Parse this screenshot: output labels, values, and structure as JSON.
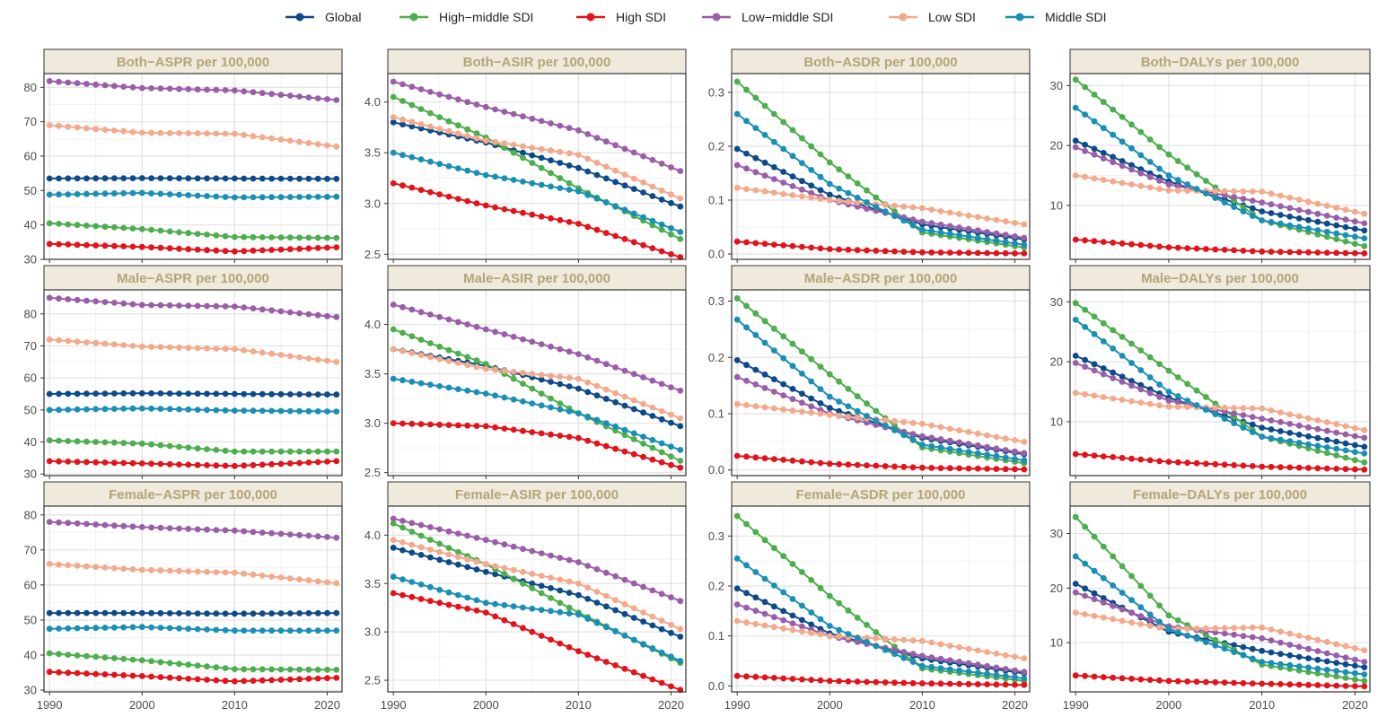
{
  "legend": [
    {
      "name": "Global",
      "color": "#0c4a8a"
    },
    {
      "name": "High−middle SDI",
      "color": "#4cae4c"
    },
    {
      "name": "High SDI",
      "color": "#e1141b"
    },
    {
      "name": "Low−middle SDI",
      "color": "#9a5ea8"
    },
    {
      "name": "Low SDI",
      "color": "#f3a98c"
    },
    {
      "name": "Middle SDI",
      "color": "#1a8fb5"
    }
  ],
  "chart_data": [
    {
      "type": "line",
      "title": "Both−ASPR per 100,000",
      "x": [
        1990,
        2000,
        2010,
        2021
      ],
      "ylim": [
        30,
        84
      ],
      "yticks": [
        30,
        40,
        50,
        60,
        70,
        80
      ],
      "ytick_labels": [
        "30",
        "40",
        "50",
        "60",
        "70",
        "80"
      ],
      "xticks": [
        1990,
        2000,
        2010,
        2020
      ],
      "xtick_labels": [
        "1990",
        "2000",
        "2010",
        "2020"
      ],
      "series": [
        {
          "name": "Global",
          "values": [
            53.5,
            53.6,
            53.5,
            53.4
          ]
        },
        {
          "name": "High−middle SDI",
          "values": [
            40.5,
            38.8,
            36.5,
            36.2
          ]
        },
        {
          "name": "High SDI",
          "values": [
            34.5,
            33.6,
            32.3,
            33.5
          ]
        },
        {
          "name": "Low−middle SDI",
          "values": [
            81.8,
            79.8,
            79.1,
            76.3
          ]
        },
        {
          "name": "Low SDI",
          "values": [
            69.0,
            66.8,
            66.5,
            62.8
          ]
        },
        {
          "name": "Middle SDI",
          "values": [
            48.8,
            49.3,
            48.0,
            48.2
          ]
        }
      ]
    },
    {
      "type": "line",
      "title": "Both−ASIR per 100,000",
      "x": [
        1990,
        2000,
        2010,
        2021
      ],
      "ylim": [
        2.45,
        4.28
      ],
      "yticks": [
        2.5,
        3.0,
        3.5,
        4.0
      ],
      "ytick_labels": [
        "2.5",
        "3.0",
        "3.5",
        "4.0"
      ],
      "xticks": [
        1990,
        2000,
        2010,
        2020
      ],
      "xtick_labels": [
        "1990",
        "2000",
        "2010",
        "2020"
      ],
      "series": [
        {
          "name": "Global",
          "values": [
            3.8,
            3.6,
            3.35,
            2.97
          ]
        },
        {
          "name": "High−middle SDI",
          "values": [
            4.05,
            3.65,
            3.15,
            2.65
          ]
        },
        {
          "name": "High SDI",
          "values": [
            3.2,
            2.98,
            2.8,
            2.47
          ]
        },
        {
          "name": "Low−middle SDI",
          "values": [
            4.2,
            3.95,
            3.72,
            3.32
          ]
        },
        {
          "name": "Low SDI",
          "values": [
            3.85,
            3.62,
            3.48,
            3.05
          ]
        },
        {
          "name": "Middle SDI",
          "values": [
            3.5,
            3.28,
            3.12,
            2.72
          ]
        }
      ]
    },
    {
      "type": "line",
      "title": "Both−ASDR per 100,000",
      "x": [
        1990,
        2000,
        2010,
        2021
      ],
      "ylim": [
        -0.01,
        0.335
      ],
      "yticks": [
        0.0,
        0.1,
        0.2,
        0.3
      ],
      "ytick_labels": [
        "0.0",
        "0.1",
        "0.2",
        "0.3"
      ],
      "xticks": [
        1990,
        2000,
        2010,
        2020
      ],
      "xtick_labels": [
        "1990",
        "2000",
        "2010",
        "2020"
      ],
      "series": [
        {
          "name": "Global",
          "values": [
            0.195,
            0.11,
            0.055,
            0.027
          ]
        },
        {
          "name": "High−middle SDI",
          "values": [
            0.32,
            0.17,
            0.04,
            0.012
          ]
        },
        {
          "name": "High SDI",
          "values": [
            0.023,
            0.009,
            0.003,
            0.001
          ]
        },
        {
          "name": "Low−middle SDI",
          "values": [
            0.165,
            0.1,
            0.06,
            0.03
          ]
        },
        {
          "name": "Low SDI",
          "values": [
            0.123,
            0.1,
            0.085,
            0.055
          ]
        },
        {
          "name": "Middle SDI",
          "values": [
            0.26,
            0.13,
            0.045,
            0.017
          ]
        }
      ]
    },
    {
      "type": "line",
      "title": "Both−DALYs per 100,000",
      "x": [
        1990,
        2000,
        2010,
        2021
      ],
      "ylim": [
        1,
        32
      ],
      "yticks": [
        10,
        20,
        30
      ],
      "ytick_labels": [
        "10",
        "20",
        "30"
      ],
      "xticks": [
        1990,
        2000,
        2010,
        2020
      ],
      "xtick_labels": [
        "1990",
        "2000",
        "2010",
        "2020"
      ],
      "series": [
        {
          "name": "Global",
          "values": [
            20.8,
            14.0,
            9.0,
            5.8
          ]
        },
        {
          "name": "High−middle SDI",
          "values": [
            31.0,
            18.5,
            7.5,
            3.2
          ]
        },
        {
          "name": "High SDI",
          "values": [
            4.3,
            3.0,
            2.3,
            2.0
          ]
        },
        {
          "name": "Low−middle SDI",
          "values": [
            19.7,
            13.5,
            10.5,
            7.0
          ]
        },
        {
          "name": "Low SDI",
          "values": [
            15.0,
            12.5,
            12.3,
            8.6
          ]
        },
        {
          "name": "Middle SDI",
          "values": [
            26.3,
            15.0,
            7.5,
            4.5
          ]
        }
      ]
    },
    {
      "type": "line",
      "title": "Male−ASPR per 100,000",
      "x": [
        1990,
        2000,
        2010,
        2021
      ],
      "ylim": [
        29.5,
        87.5
      ],
      "yticks": [
        30,
        40,
        50,
        60,
        70,
        80
      ],
      "ytick_labels": [
        "30",
        "40",
        "50",
        "60",
        "70",
        "80"
      ],
      "xticks": [
        1990,
        2000,
        2010,
        2020
      ],
      "xtick_labels": [
        "1990",
        "2000",
        "2010",
        "2020"
      ],
      "series": [
        {
          "name": "Global",
          "values": [
            55.0,
            55.2,
            55.0,
            54.8
          ]
        },
        {
          "name": "High−middle SDI",
          "values": [
            40.5,
            39.5,
            37.0,
            37.0
          ]
        },
        {
          "name": "High SDI",
          "values": [
            34.0,
            33.3,
            32.5,
            34.0
          ]
        },
        {
          "name": "Low−middle SDI",
          "values": [
            85.0,
            82.8,
            82.3,
            79.0
          ]
        },
        {
          "name": "Low SDI",
          "values": [
            72.0,
            69.8,
            69.0,
            65.0
          ]
        },
        {
          "name": "Middle SDI",
          "values": [
            50.0,
            50.5,
            49.8,
            49.5
          ]
        }
      ]
    },
    {
      "type": "line",
      "title": "Male−ASIR per 100,000",
      "x": [
        1990,
        2000,
        2010,
        2021
      ],
      "ylim": [
        2.47,
        4.35
      ],
      "yticks": [
        2.5,
        3.0,
        3.5,
        4.0
      ],
      "ytick_labels": [
        "2.5",
        "3.0",
        "3.5",
        "4.0"
      ],
      "xticks": [
        1990,
        2000,
        2010,
        2020
      ],
      "xtick_labels": [
        "1990",
        "2000",
        "2010",
        "2020"
      ],
      "series": [
        {
          "name": "Global",
          "values": [
            3.75,
            3.58,
            3.35,
            2.97
          ]
        },
        {
          "name": "High−middle SDI",
          "values": [
            3.95,
            3.6,
            3.1,
            2.62
          ]
        },
        {
          "name": "High SDI",
          "values": [
            3.0,
            2.97,
            2.85,
            2.55
          ]
        },
        {
          "name": "Low−middle SDI",
          "values": [
            4.2,
            3.95,
            3.7,
            3.33
          ]
        },
        {
          "name": "Low SDI",
          "values": [
            3.75,
            3.55,
            3.45,
            3.05
          ]
        },
        {
          "name": "Middle SDI",
          "values": [
            3.45,
            3.3,
            3.1,
            2.73
          ]
        }
      ]
    },
    {
      "type": "line",
      "title": "Male−ASDR per 100,000",
      "x": [
        1990,
        2000,
        2010,
        2021
      ],
      "ylim": [
        -0.01,
        0.32
      ],
      "yticks": [
        0.0,
        0.1,
        0.2,
        0.3
      ],
      "ytick_labels": [
        "0.0",
        "0.1",
        "0.2",
        "0.3"
      ],
      "xticks": [
        1990,
        2000,
        2010,
        2020
      ],
      "xtick_labels": [
        "1990",
        "2000",
        "2010",
        "2020"
      ],
      "series": [
        {
          "name": "Global",
          "values": [
            0.195,
            0.11,
            0.057,
            0.028
          ]
        },
        {
          "name": "High−middle SDI",
          "values": [
            0.305,
            0.17,
            0.04,
            0.012
          ]
        },
        {
          "name": "High SDI",
          "values": [
            0.025,
            0.011,
            0.004,
            0.001
          ]
        },
        {
          "name": "Low−middle SDI",
          "values": [
            0.165,
            0.1,
            0.06,
            0.03
          ]
        },
        {
          "name": "Low SDI",
          "values": [
            0.117,
            0.098,
            0.082,
            0.05
          ]
        },
        {
          "name": "Middle SDI",
          "values": [
            0.267,
            0.13,
            0.045,
            0.017
          ]
        }
      ]
    },
    {
      "type": "line",
      "title": "Male−DALYs per 100,000",
      "x": [
        1990,
        2000,
        2010,
        2021
      ],
      "ylim": [
        1,
        32
      ],
      "yticks": [
        10,
        20,
        30
      ],
      "ytick_labels": [
        "10",
        "20",
        "30"
      ],
      "xticks": [
        1990,
        2000,
        2010,
        2020
      ],
      "xtick_labels": [
        "1990",
        "2000",
        "2010",
        "2020"
      ],
      "series": [
        {
          "name": "Global",
          "values": [
            21.0,
            14.0,
            9.0,
            5.8
          ]
        },
        {
          "name": "High−middle SDI",
          "values": [
            29.8,
            18.5,
            7.5,
            3.2
          ]
        },
        {
          "name": "High SDI",
          "values": [
            4.6,
            3.3,
            2.5,
            2.0
          ]
        },
        {
          "name": "Low−middle SDI",
          "values": [
            19.8,
            13.5,
            10.5,
            7.3
          ]
        },
        {
          "name": "Low SDI",
          "values": [
            14.8,
            12.5,
            12.2,
            8.6
          ]
        },
        {
          "name": "Middle SDI",
          "values": [
            27.0,
            15.0,
            7.5,
            4.7
          ]
        }
      ]
    },
    {
      "type": "line",
      "title": "Female−ASPR per 100,000",
      "x": [
        1990,
        2000,
        2010,
        2021
      ],
      "ylim": [
        29.5,
        82.5
      ],
      "yticks": [
        30,
        40,
        50,
        60,
        70,
        80
      ],
      "ytick_labels": [
        "30",
        "40",
        "50",
        "60",
        "70",
        "80"
      ],
      "xticks": [
        1990,
        2000,
        2010,
        2020
      ],
      "xtick_labels": [
        "1990",
        "2000",
        "2010",
        "2020"
      ],
      "series": [
        {
          "name": "Global",
          "values": [
            52.0,
            52.0,
            51.8,
            52.0
          ]
        },
        {
          "name": "High−middle SDI",
          "values": [
            40.5,
            38.5,
            36.0,
            35.8
          ]
        },
        {
          "name": "High SDI",
          "values": [
            35.2,
            34.0,
            32.5,
            33.5
          ]
        },
        {
          "name": "Low−middle SDI",
          "values": [
            78.0,
            76.5,
            75.5,
            73.5
          ]
        },
        {
          "name": "Low SDI",
          "values": [
            66.0,
            64.3,
            63.5,
            60.5
          ]
        },
        {
          "name": "Middle SDI",
          "values": [
            47.5,
            48.0,
            47.0,
            47.0
          ]
        }
      ]
    },
    {
      "type": "line",
      "title": "Female−ASIR per 100,000",
      "x": [
        1990,
        2000,
        2010,
        2021
      ],
      "ylim": [
        2.38,
        4.3
      ],
      "yticks": [
        2.5,
        3.0,
        3.5,
        4.0
      ],
      "ytick_labels": [
        "2.5",
        "3.0",
        "3.5",
        "4.0"
      ],
      "xticks": [
        1990,
        2000,
        2010,
        2020
      ],
      "xtick_labels": [
        "1990",
        "2000",
        "2010",
        "2020"
      ],
      "series": [
        {
          "name": "Global",
          "values": [
            3.87,
            3.62,
            3.38,
            2.95
          ]
        },
        {
          "name": "High−middle SDI",
          "values": [
            4.12,
            3.7,
            3.2,
            2.68
          ]
        },
        {
          "name": "High SDI",
          "values": [
            3.4,
            3.2,
            2.8,
            2.4
          ]
        },
        {
          "name": "Low−middle SDI",
          "values": [
            4.17,
            3.95,
            3.72,
            3.32
          ]
        },
        {
          "name": "Low SDI",
          "values": [
            3.95,
            3.7,
            3.5,
            3.03
          ]
        },
        {
          "name": "Middle SDI",
          "values": [
            3.57,
            3.3,
            3.18,
            2.7
          ]
        }
      ]
    },
    {
      "type": "line",
      "title": "Female−ASDR per 100,000",
      "x": [
        1990,
        2000,
        2010,
        2021
      ],
      "ylim": [
        -0.012,
        0.36
      ],
      "yticks": [
        0.0,
        0.1,
        0.2,
        0.3
      ],
      "ytick_labels": [
        "0.0",
        "0.1",
        "0.2",
        "0.3"
      ],
      "xticks": [
        1990,
        2000,
        2010,
        2020
      ],
      "xtick_labels": [
        "1990",
        "2000",
        "2010",
        "2020"
      ],
      "series": [
        {
          "name": "Global",
          "values": [
            0.195,
            0.105,
            0.055,
            0.025
          ]
        },
        {
          "name": "High−middle SDI",
          "values": [
            0.34,
            0.18,
            0.035,
            0.01
          ]
        },
        {
          "name": "High SDI",
          "values": [
            0.02,
            0.01,
            0.005,
            0.002
          ]
        },
        {
          "name": "Low−middle SDI",
          "values": [
            0.163,
            0.1,
            0.06,
            0.028
          ]
        },
        {
          "name": "Low SDI",
          "values": [
            0.13,
            0.1,
            0.09,
            0.055
          ]
        },
        {
          "name": "Middle SDI",
          "values": [
            0.255,
            0.12,
            0.04,
            0.015
          ]
        }
      ]
    },
    {
      "type": "line",
      "title": "Female−DALYs per 100,000",
      "x": [
        1990,
        2000,
        2010,
        2021
      ],
      "ylim": [
        1,
        35
      ],
      "yticks": [
        10,
        20,
        30
      ],
      "ytick_labels": [
        "10",
        "20",
        "30"
      ],
      "xticks": [
        1990,
        2000,
        2010,
        2020
      ],
      "xtick_labels": [
        "1990",
        "2000",
        "2010",
        "2020"
      ],
      "series": [
        {
          "name": "Global",
          "values": [
            20.8,
            12.0,
            8.5,
            5.5
          ]
        },
        {
          "name": "High−middle SDI",
          "values": [
            33.0,
            15.0,
            6.0,
            3.0
          ]
        },
        {
          "name": "High SDI",
          "values": [
            4.0,
            3.0,
            2.5,
            2.0
          ]
        },
        {
          "name": "Low−middle SDI",
          "values": [
            19.2,
            13.0,
            10.8,
            6.5
          ]
        },
        {
          "name": "Low SDI",
          "values": [
            15.5,
            12.5,
            12.8,
            8.6
          ]
        },
        {
          "name": "Middle SDI",
          "values": [
            25.8,
            12.5,
            6.5,
            4.2
          ]
        }
      ]
    }
  ]
}
